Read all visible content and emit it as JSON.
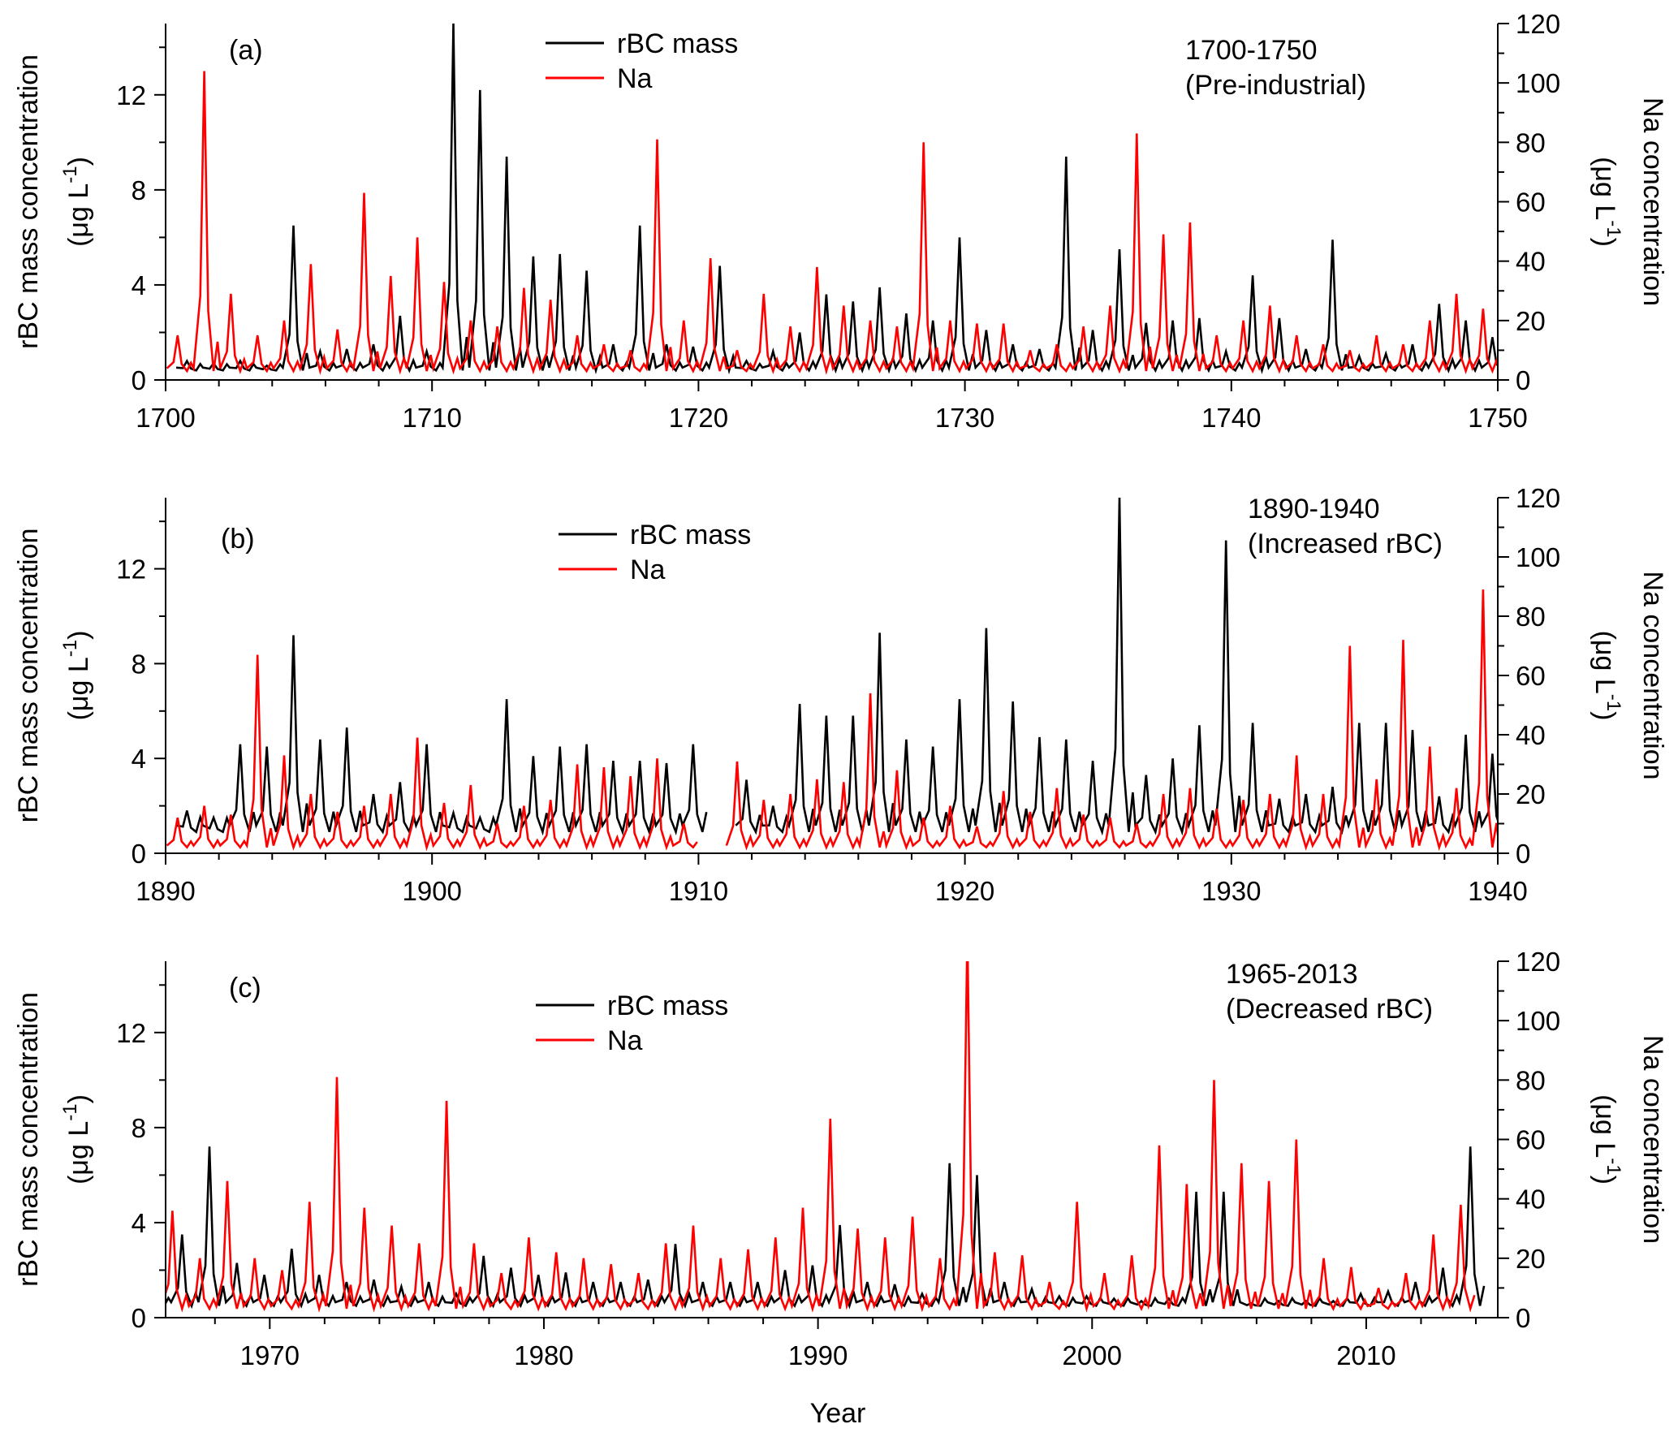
{
  "chart_data": [
    {
      "type": "line",
      "panel_label": "(a)",
      "annotation": [
        "1700-1750",
        "(Pre-industrial)"
      ],
      "xlim": [
        1700,
        1750
      ],
      "xticks": [
        1700,
        1710,
        1720,
        1730,
        1740,
        1750
      ],
      "ylabel": [
        "rBC mass concentration",
        "(μg L",
        "-1",
        ")"
      ],
      "y2label": [
        "Na concentration",
        "(μg L",
        "-1",
        ")"
      ],
      "ylim": [
        0,
        15
      ],
      "yticks": [
        0,
        4,
        8,
        12
      ],
      "y2lim": [
        0,
        120
      ],
      "y2ticks": [
        0,
        20,
        40,
        60,
        80,
        100,
        120
      ],
      "legend": [
        "rBC mass",
        "Na"
      ],
      "start_year": 1700,
      "series": [
        {
          "name": "rBC mass",
          "color": "#000000",
          "axis": "left",
          "baseline": 0.4,
          "annual_peaks": [
            0.8,
            0.7,
            0.8,
            0.6,
            6.5,
            1.2,
            1.3,
            1.5,
            2.7,
            1.2,
            15,
            12.2,
            9.4,
            5.2,
            5.3,
            4.6,
            1.5,
            6.5,
            1.5,
            1.4,
            4.8,
            0.8,
            1.2,
            2,
            3.6,
            3.3,
            3.9,
            2.8,
            2.5,
            6,
            2.1,
            1.5,
            1.3,
            9.4,
            2.1,
            5.5,
            2.4,
            2.5,
            2.6,
            1.2,
            4.4,
            2.6,
            1.3,
            5.9,
            1,
            1.1,
            1.5,
            3.2,
            2.5,
            1.8,
            1.5
          ]
        },
        {
          "name": "Na",
          "color": "#ff0000",
          "axis": "right",
          "baseline": 3,
          "annual_peaks": [
            15,
            104,
            29,
            15,
            20,
            39,
            17,
            63,
            35,
            48,
            33,
            20,
            18,
            31,
            27,
            15,
            12,
            10,
            81,
            20,
            41,
            10,
            29,
            18,
            38,
            25,
            20,
            18,
            80,
            20,
            19,
            19,
            10,
            12,
            18,
            25,
            83,
            49,
            53,
            15,
            20,
            25,
            15,
            12,
            10,
            15,
            12,
            20,
            29,
            24,
            20
          ]
        }
      ]
    },
    {
      "type": "line",
      "panel_label": "(b)",
      "annotation": [
        "1890-1940",
        "(Increased rBC)"
      ],
      "xlim": [
        1890,
        1940
      ],
      "xticks": [
        1890,
        1900,
        1910,
        1920,
        1930,
        1940
      ],
      "ylabel": [
        "rBC mass concentration",
        "(μg L",
        "-1",
        ")"
      ],
      "y2label": [
        "Na concentration",
        "(μg L",
        "-1",
        ")"
      ],
      "ylim": [
        0,
        15
      ],
      "yticks": [
        0,
        4,
        8,
        12
      ],
      "y2lim": [
        0,
        120
      ],
      "y2ticks": [
        0,
        20,
        40,
        60,
        80,
        100,
        120
      ],
      "legend": [
        "rBC mass",
        "Na"
      ],
      "start_year": 1890,
      "series": [
        {
          "name": "rBC mass",
          "color": "#000000",
          "axis": "left",
          "baseline": 0.9,
          "annual_peaks": [
            1.8,
            1.5,
            4.6,
            4.5,
            9.2,
            4.8,
            5.3,
            2.5,
            3,
            4.6,
            1.7,
            1.5,
            6.5,
            4.1,
            4.5,
            4.6,
            3.9,
            3.9,
            3.8,
            4.6,
            null,
            3.1,
            2,
            6.3,
            5.8,
            5.8,
            9.3,
            4.8,
            4.5,
            6.5,
            9.5,
            6.4,
            4.9,
            4.8,
            3.9,
            15,
            3.3,
            4,
            5.4,
            13.2,
            5.5,
            2.3,
            2.5,
            2.8,
            5.5,
            5.5,
            5.2,
            2.4,
            5,
            4.2,
            1.8
          ]
        },
        {
          "name": "Na",
          "color": "#ff0000",
          "axis": "right",
          "baseline": 2,
          "annual_peaks": [
            12,
            16,
            13,
            67,
            33,
            20,
            14,
            16,
            20,
            39,
            17,
            23,
            10,
            16,
            18,
            30,
            29,
            26,
            32,
            10,
            null,
            31,
            18,
            20,
            25,
            24,
            54,
            28,
            12,
            16,
            9,
            21,
            14,
            22,
            13,
            12,
            10,
            20,
            22,
            15,
            18,
            20,
            33,
            20,
            70,
            25,
            72,
            36,
            22,
            89,
            15
          ]
        }
      ]
    },
    {
      "type": "line",
      "panel_label": "(c)",
      "annotation": [
        "1965-2013",
        "(Decreased rBC)"
      ],
      "xlim": [
        1966.2,
        2014.8
      ],
      "xticks": [
        1970,
        1980,
        1990,
        2000,
        2010
      ],
      "xlabel": "Year",
      "ylabel": [
        "rBC mass concentration",
        "(μg L",
        "-1",
        ")"
      ],
      "y2label": [
        "Na concentration",
        "(μg L",
        "-1",
        ")"
      ],
      "ylim": [
        0,
        15
      ],
      "yticks": [
        0,
        4,
        8,
        12
      ],
      "y2lim": [
        0,
        120
      ],
      "y2ticks": [
        0,
        20,
        40,
        60,
        80,
        100,
        120
      ],
      "legend": [
        "rBC mass",
        "Na"
      ],
      "start_year": 1965,
      "series": [
        {
          "name": "rBC mass",
          "color": "#000000",
          "axis": "left",
          "baseline": 0.5,
          "annual_peaks": [
            0.9,
            3.5,
            7.2,
            2.3,
            1.8,
            2.9,
            1.8,
            1.5,
            1.6,
            1.3,
            1.5,
            1,
            2.6,
            2.1,
            1.8,
            1.9,
            1.5,
            1.5,
            1.6,
            3.1,
            1.5,
            1.5,
            1.5,
            2,
            2.2,
            3.9,
            1.5,
            1.4,
            1,
            6.5,
            6,
            1.5,
            1.2,
            0.9,
            0.9,
            0.8,
            0.7,
            0.8,
            5.3,
            5.3,
            0.6,
            0.7,
            0.7,
            0.7,
            1,
            1.1,
            1.5,
            2.1,
            7.2
          ]
        },
        {
          "name": "Na",
          "color": "#ff0000",
          "axis": "right",
          "baseline": 3,
          "annual_peaks": [
            12,
            36,
            20,
            46,
            20,
            16,
            39,
            81,
            37,
            31,
            25,
            73,
            25,
            15,
            27,
            22,
            20,
            18,
            15,
            25,
            31,
            20,
            23,
            27,
            37,
            67,
            30,
            27,
            34,
            20,
            130,
            22,
            21,
            12,
            39,
            15,
            21,
            58,
            45,
            80,
            52,
            46,
            60,
            20,
            17,
            10,
            15,
            28,
            38
          ]
        }
      ]
    }
  ]
}
